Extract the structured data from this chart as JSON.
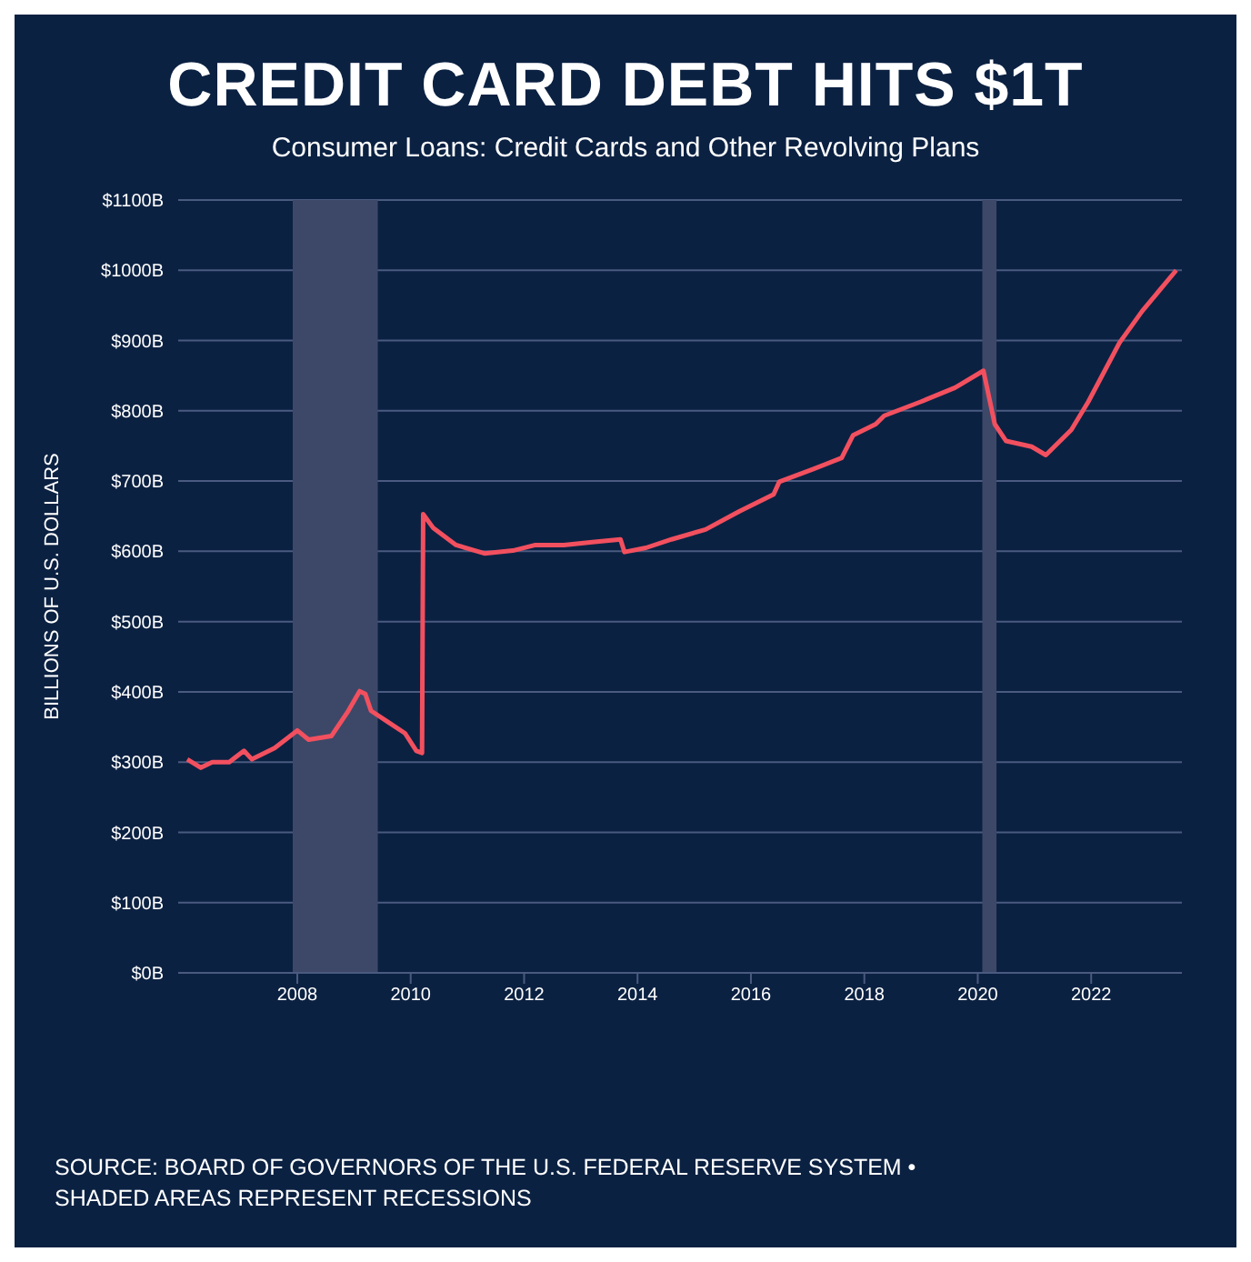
{
  "chart_data": {
    "type": "line",
    "title": "CREDIT CARD DEBT HITS $1T",
    "subtitle": "Consumer Loans: Credit Cards and Other Revolving Plans",
    "ylabel": "BILLIONS OF U.S. DOLLARS",
    "annotations": [
      "SOURCE: BOARD OF GOVERNORS OF THE U.S. FEDERAL RESERVE SYSTEM •",
      "SHADED AREAS REPRESENT RECESSIONS"
    ],
    "x": [
      2006.06,
      2006.3,
      2006.5,
      2006.8,
      2007.06,
      2007.2,
      2007.6,
      2008.0,
      2008.2,
      2008.6,
      2008.9,
      2009.1,
      2009.2,
      2009.3,
      2009.6,
      2009.9,
      2010.1,
      2010.2,
      2010.22,
      2010.4,
      2010.8,
      2011.3,
      2011.8,
      2012.2,
      2012.7,
      2013.2,
      2013.7,
      2013.77,
      2014.15,
      2014.6,
      2015.2,
      2015.8,
      2016.4,
      2016.5,
      2017.1,
      2017.6,
      2017.8,
      2018.2,
      2018.35,
      2019.0,
      2019.6,
      2020.1,
      2020.3,
      2020.5,
      2020.95,
      2021.2,
      2021.65,
      2021.95,
      2022.5,
      2022.9,
      2023.5
    ],
    "series": [
      {
        "color": "#f2505f",
        "values": [
          304,
          292,
          300,
          300,
          316,
          304,
          320,
          345,
          332,
          337,
          373,
          401,
          397,
          373,
          357,
          341,
          316,
          313,
          653,
          633,
          609,
          597,
          601,
          609,
          609,
          613,
          617,
          599,
          605,
          617,
          631,
          657,
          681,
          699,
          717,
          733,
          765,
          781,
          793,
          813,
          833,
          857,
          781,
          757,
          749,
          737,
          773,
          813,
          897,
          942,
          1000
        ]
      }
    ],
    "xlim": [
      2005.9,
      2023.6
    ],
    "xticks": [
      2008,
      2010,
      2012,
      2014,
      2016,
      2018,
      2020,
      2022
    ],
    "ylim": [
      0,
      1100
    ],
    "yticks": [
      {
        "value": 0,
        "label": "$0B"
      },
      {
        "value": 100,
        "label": "$100B"
      },
      {
        "value": 200,
        "label": "$200B"
      },
      {
        "value": 300,
        "label": "$300B"
      },
      {
        "value": 400,
        "label": "$400B"
      },
      {
        "value": 500,
        "label": "$500B"
      },
      {
        "value": 600,
        "label": "$600B"
      },
      {
        "value": 700,
        "label": "$700B"
      },
      {
        "value": 800,
        "label": "$800B"
      },
      {
        "value": 900,
        "label": "$900B"
      },
      {
        "value": 1000,
        "label": "$1000B"
      },
      {
        "value": 1100,
        "label": "$1100B"
      }
    ],
    "bands": [
      {
        "axis": "x",
        "from": 2007.92,
        "to": 2009.42,
        "color": "#3d4868"
      },
      {
        "axis": "x",
        "from": 2020.08,
        "to": 2020.33,
        "color": "#3d4868"
      }
    ],
    "grid": "y",
    "marker": "none",
    "line_style": "solid"
  }
}
